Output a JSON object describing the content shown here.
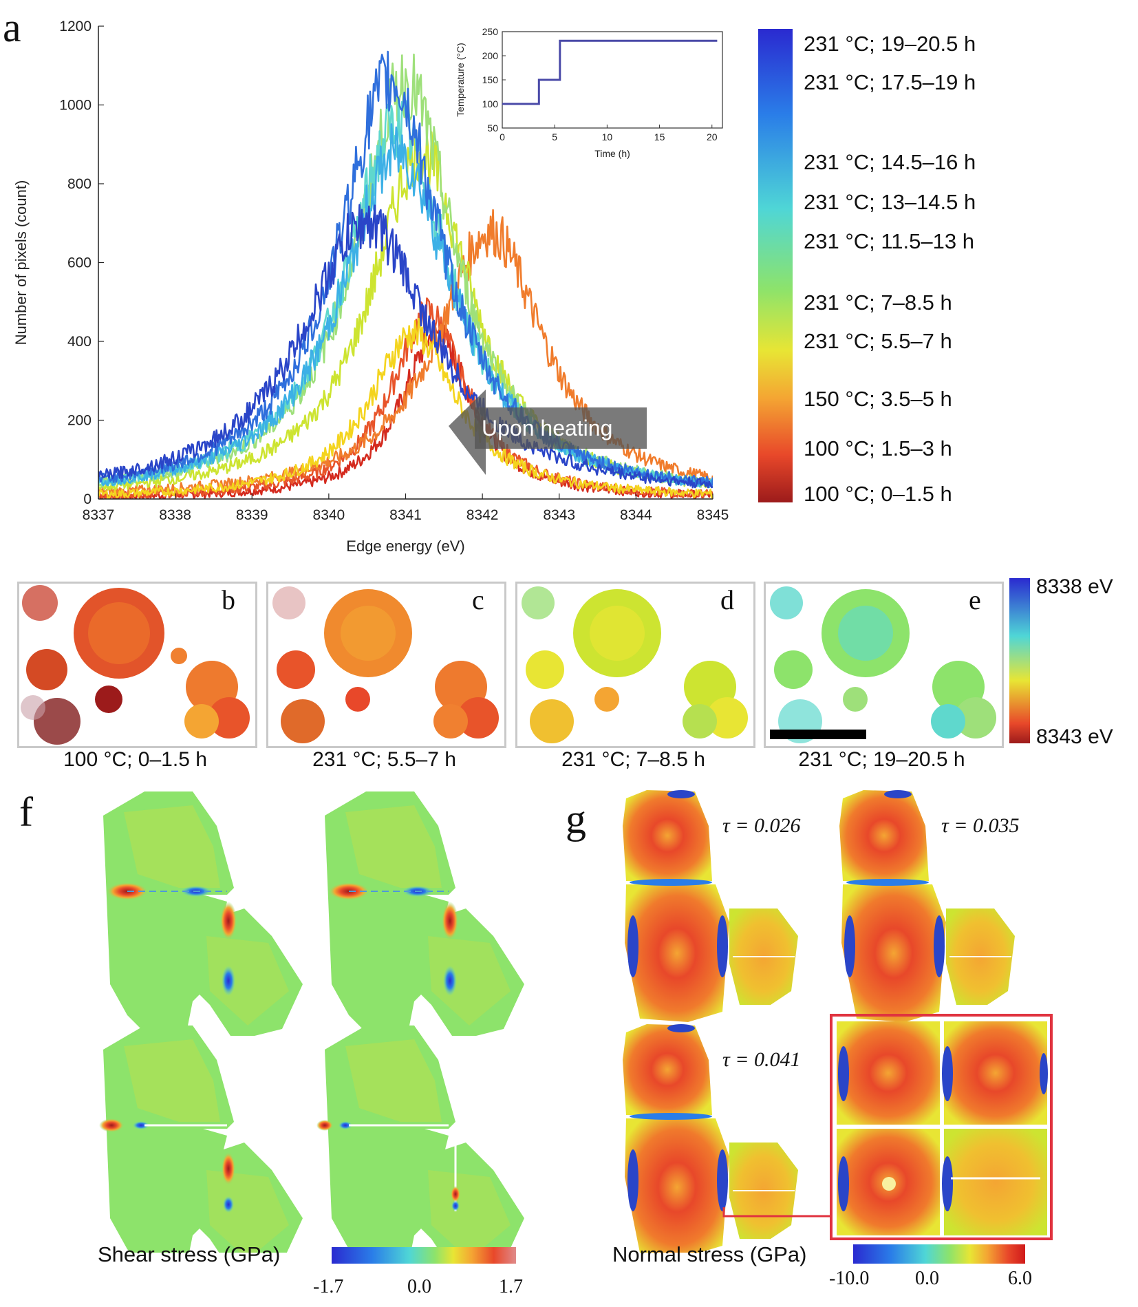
{
  "panel_labels": {
    "a": "a",
    "b": "b",
    "c": "c",
    "d": "d",
    "e": "e",
    "f": "f",
    "g": "g"
  },
  "chart_data": [
    {
      "type": "line",
      "xlabel": "Edge energy (eV)",
      "ylabel": "Number of pixels (count)",
      "xlim": [
        8337,
        8345
      ],
      "ylim": [
        0,
        1200
      ],
      "xticks": [
        8337,
        8338,
        8339,
        8340,
        8341,
        8342,
        8343,
        8344,
        8345
      ],
      "yticks": [
        0,
        200,
        400,
        600,
        800,
        1000,
        1200
      ],
      "annotation": "Upon heating",
      "legend_position": "right (colorbar)",
      "series": [
        {
          "name": "100 °C; 0–1.5 h",
          "color": "#d42a1e",
          "peak_x": 8341.4,
          "peak_y": 420,
          "width": 0.55
        },
        {
          "name": "100 °C; 1.5–3 h",
          "color": "#e8542a",
          "peak_x": 8341.3,
          "peak_y": 470,
          "width": 0.6
        },
        {
          "name": "150 °C; 3.5–5 h",
          "color": "#f07c2c",
          "peak_x": 8342.1,
          "peak_y": 680,
          "width": 0.85
        },
        {
          "name": "231 °C; 5.5–7 h",
          "color": "#f4d41e",
          "peak_x": 8341.1,
          "peak_y": 420,
          "width": 0.7
        },
        {
          "name": "231 °C; 7–8.5 h",
          "color": "#cde431",
          "peak_x": 8341.2,
          "peak_y": 880,
          "width": 0.8
        },
        {
          "name": "231 °C; 11.5–13 h",
          "color": "#9ee07a",
          "peak_x": 8341.0,
          "peak_y": 1060,
          "width": 0.8
        },
        {
          "name": "231 °C; 13–14.5 h",
          "color": "#5fd8cd",
          "peak_x": 8340.9,
          "peak_y": 950,
          "width": 0.85
        },
        {
          "name": "231 °C; 14.5–16 h",
          "color": "#3cb0e6",
          "peak_x": 8340.9,
          "peak_y": 880,
          "width": 0.9
        },
        {
          "name": "231 °C; 17.5–19 h",
          "color": "#2f6fdc",
          "peak_x": 8340.8,
          "peak_y": 1060,
          "width": 0.85
        },
        {
          "name": "231 °C; 19–20.5 h",
          "color": "#2a45c8",
          "peak_x": 8340.5,
          "peak_y": 700,
          "width": 1.05
        }
      ]
    },
    {
      "type": "line",
      "xlabel": "Time (h)",
      "ylabel": "Temperature (°C)",
      "xlim": [
        0,
        21
      ],
      "ylim": [
        50,
        250
      ],
      "xticks": [
        0,
        5,
        10,
        15,
        20
      ],
      "yticks": [
        50,
        100,
        150,
        200,
        250
      ],
      "x": [
        0,
        3.5,
        3.5,
        5.5,
        5.5,
        20.5
      ],
      "y": [
        100,
        100,
        150,
        150,
        231,
        231
      ]
    }
  ],
  "legend_labels": [
    "231 °C; 19–20.5 h",
    "231 °C; 17.5–19 h",
    "231 °C; 14.5–16 h",
    "231 °C; 13–14.5 h",
    "231 °C; 11.5–13 h",
    "231 °C; 7–8.5 h",
    "231 °C; 5.5–7 h",
    "150 °C; 3.5–5 h",
    "100 °C; 1.5–3 h",
    "100 °C; 0–1.5 h"
  ],
  "maps": {
    "captions": [
      "100 °C; 0–1.5 h",
      "231 °C; 5.5–7 h",
      "231 °C; 7–8.5 h",
      "231 °C; 19–20.5 h"
    ],
    "colorbar_top": "8338 eV",
    "colorbar_bottom": "8343 eV"
  },
  "panel_f": {
    "caption": "Shear stress (GPa)",
    "colorbar_ticks": [
      "-1.7",
      "0.0",
      "1.7"
    ]
  },
  "panel_g": {
    "caption": "Normal stress (GPa)",
    "tau_labels": [
      "τ = 0.026",
      "τ = 0.035",
      "τ = 0.041"
    ],
    "colorbar_ticks": [
      "-10.0",
      "0.0",
      "6.0"
    ]
  },
  "colors": {
    "jet": [
      "#2a2ad0",
      "#2a7de8",
      "#4fd6d6",
      "#8de36b",
      "#e8e534",
      "#f4a533",
      "#e8482a",
      "#9c1b1b"
    ],
    "highlight_box": "#e0333f"
  }
}
